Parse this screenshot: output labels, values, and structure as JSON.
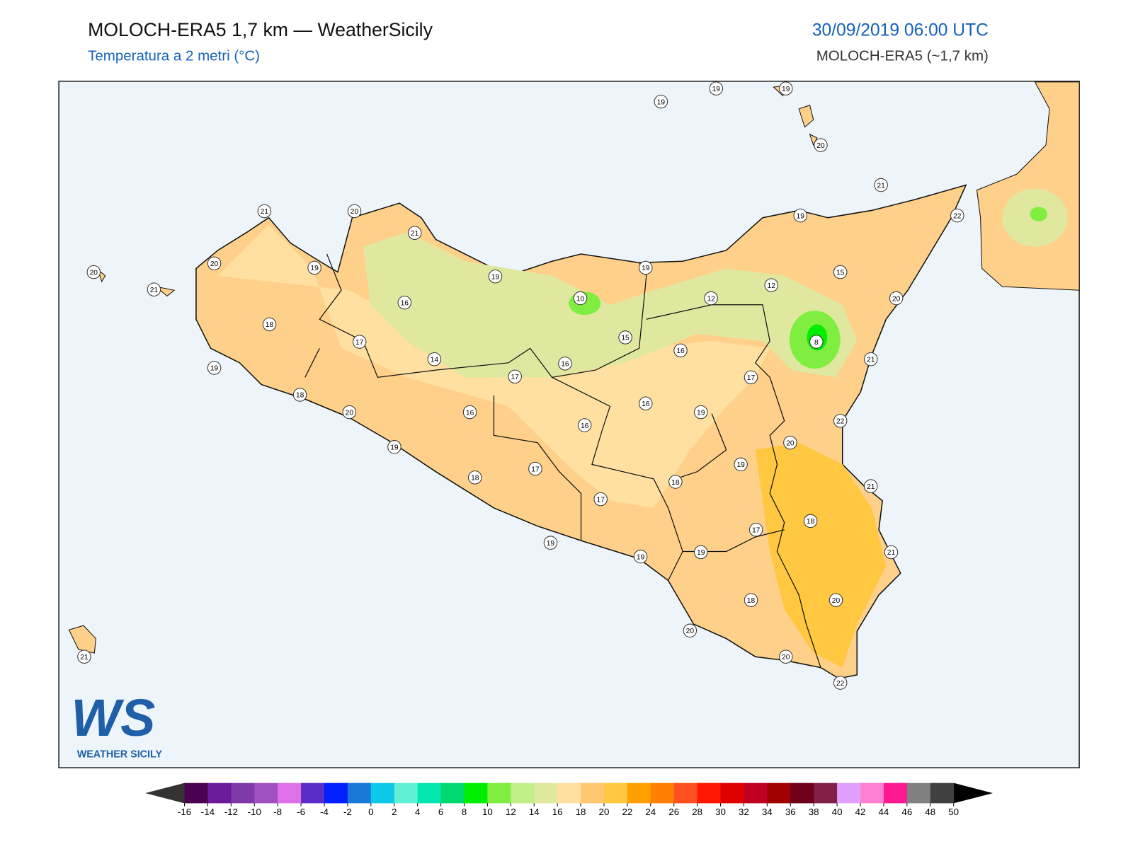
{
  "header": {
    "title": "MOLOCH-ERA5 1,7 km — WeatherSicily",
    "subtitle": "Temperatura a 2 metri (°C)",
    "date": "30/09/2019 06:00 UTC",
    "model": "MOLOCH-ERA5 (~1,7 km)"
  },
  "stations": [
    19,
    19,
    19,
    20,
    21,
    22,
    19,
    15,
    20,
    12,
    12,
    19,
    10,
    8,
    16,
    15,
    21,
    17,
    16,
    19,
    22,
    20,
    19,
    21,
    18,
    18,
    17,
    21,
    19,
    20,
    18,
    20,
    20,
    22,
    19,
    19,
    17,
    17,
    18,
    19,
    20,
    18,
    19,
    18,
    17,
    14,
    16,
    16,
    17,
    16,
    16,
    19,
    21,
    20,
    21,
    19,
    20,
    20,
    21,
    21
  ],
  "colorbar": {
    "ticks": [
      -16,
      -14,
      -12,
      -10,
      -8,
      -6,
      -4,
      -2,
      0,
      2,
      4,
      6,
      8,
      10,
      12,
      14,
      16,
      18,
      20,
      22,
      24,
      26,
      28,
      30,
      32,
      34,
      36,
      38,
      40,
      42,
      44,
      46,
      48,
      50
    ],
    "colors": [
      "#4b0050",
      "#6a1a9a",
      "#7e3aa8",
      "#a050c0",
      "#e070e8",
      "#5a2dc8",
      "#0020ff",
      "#1a78d8",
      "#0ec8e8",
      "#60f0d8",
      "#00e8b0",
      "#00d870",
      "#00ee00",
      "#80ee40",
      "#c0ef88",
      "#e0e8a0",
      "#ffe0a0",
      "#ffc870",
      "#ffc840",
      "#ffa000",
      "#ff8000",
      "#ff5020",
      "#ff1800",
      "#e00000",
      "#c00020",
      "#a00000",
      "#700018",
      "#802048",
      "#e0a0ff",
      "#ff80d0",
      "#ff1890",
      "#808080",
      "#404040"
    ],
    "under": "#333333",
    "over": "#000000"
  },
  "logo": {
    "mark": "WS",
    "name": "WEATHER SICILY"
  }
}
